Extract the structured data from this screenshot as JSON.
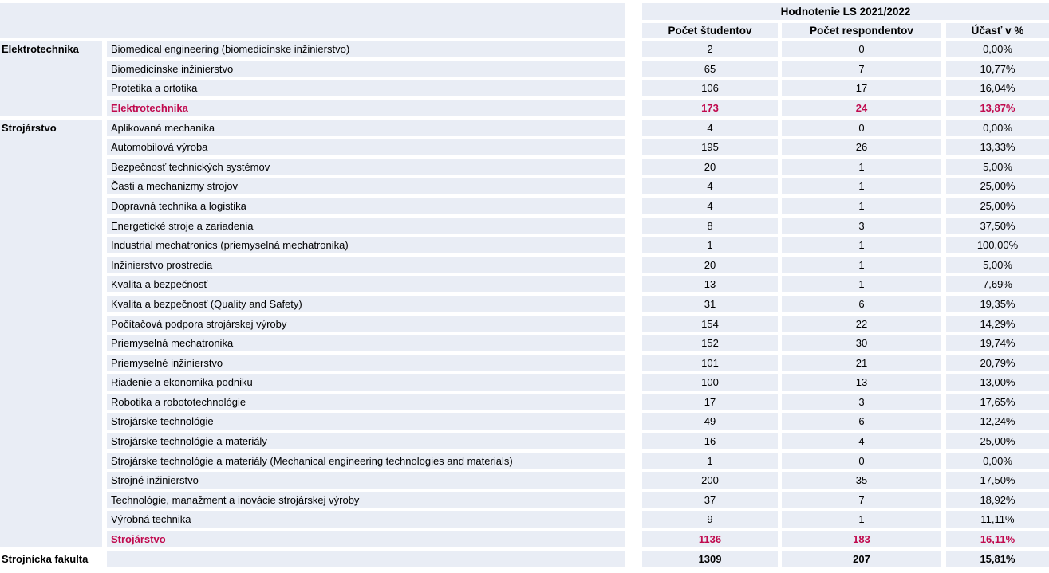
{
  "table": {
    "colors": {
      "cell_bg": "#e9edf5",
      "accent_red": "#c00a4e",
      "text": "#000000"
    },
    "header": {
      "title": "Hodnotenie LS 2021/2022",
      "columns": [
        "Počet študentov",
        "Počet respondentov",
        "Účasť v %"
      ]
    },
    "groups": [
      {
        "label": "Elektrotechnika",
        "rows": [
          {
            "program": "Biomedical engineering (biomedicínske inžinierstvo)",
            "students": "2",
            "respondents": "0",
            "participation": "0,00%"
          },
          {
            "program": "Biomedicínske inžinierstvo",
            "students": "65",
            "respondents": "7",
            "participation": "10,77%"
          },
          {
            "program": "Protetika a ortotika",
            "students": "106",
            "respondents": "17",
            "participation": "16,04%"
          },
          {
            "program": "Elektrotechnika",
            "students": "173",
            "respondents": "24",
            "participation": "13,87%",
            "summary": true
          }
        ]
      },
      {
        "label": "Strojárstvo",
        "rows": [
          {
            "program": "Aplikovaná mechanika",
            "students": "4",
            "respondents": "0",
            "participation": "0,00%"
          },
          {
            "program": "Automobilová výroba",
            "students": "195",
            "respondents": "26",
            "participation": "13,33%"
          },
          {
            "program": "Bezpečnosť technických systémov",
            "students": "20",
            "respondents": "1",
            "participation": "5,00%"
          },
          {
            "program": "Časti a mechanizmy strojov",
            "students": "4",
            "respondents": "1",
            "participation": "25,00%"
          },
          {
            "program": "Dopravná technika a logistika",
            "students": "4",
            "respondents": "1",
            "participation": "25,00%"
          },
          {
            "program": "Energetické stroje a zariadenia",
            "students": "8",
            "respondents": "3",
            "participation": "37,50%"
          },
          {
            "program": "Industrial mechatronics (priemyselná mechatronika)",
            "students": "1",
            "respondents": "1",
            "participation": "100,00%"
          },
          {
            "program": "Inžinierstvo prostredia",
            "students": "20",
            "respondents": "1",
            "participation": "5,00%"
          },
          {
            "program": "Kvalita a bezpečnosť",
            "students": "13",
            "respondents": "1",
            "participation": "7,69%"
          },
          {
            "program": "Kvalita a bezpečnosť (Quality and Safety)",
            "students": "31",
            "respondents": "6",
            "participation": "19,35%"
          },
          {
            "program": "Počítačová podpora strojárskej výroby",
            "students": "154",
            "respondents": "22",
            "participation": "14,29%"
          },
          {
            "program": "Priemyselná mechatronika",
            "students": "152",
            "respondents": "30",
            "participation": "19,74%"
          },
          {
            "program": "Priemyselné inžinierstvo",
            "students": "101",
            "respondents": "21",
            "participation": "20,79%"
          },
          {
            "program": "Riadenie a ekonomika podniku",
            "students": "100",
            "respondents": "13",
            "participation": "13,00%"
          },
          {
            "program": "Robotika a robototechnológie",
            "students": "17",
            "respondents": "3",
            "participation": "17,65%"
          },
          {
            "program": "Strojárske technológie",
            "students": "49",
            "respondents": "6",
            "participation": "12,24%"
          },
          {
            "program": "Strojárske technológie a materiály",
            "students": "16",
            "respondents": "4",
            "participation": "25,00%"
          },
          {
            "program": "Strojárske technológie a materiály (Mechanical engineering technologies and materials)",
            "students": "1",
            "respondents": "0",
            "participation": "0,00%"
          },
          {
            "program": "Strojné inžinierstvo",
            "students": "200",
            "respondents": "35",
            "participation": "17,50%"
          },
          {
            "program": "Technológie, manažment a inovácie strojárskej výroby",
            "students": "37",
            "respondents": "7",
            "participation": "18,92%"
          },
          {
            "program": "Výrobná technika",
            "students": "9",
            "respondents": "1",
            "participation": "11,11%"
          },
          {
            "program": "Strojárstvo",
            "students": "1136",
            "respondents": "183",
            "participation": "16,11%",
            "summary": true
          }
        ]
      }
    ],
    "footer": {
      "label": "Strojnícka fakulta",
      "students": "1309",
      "respondents": "207",
      "participation": "15,81%"
    }
  }
}
